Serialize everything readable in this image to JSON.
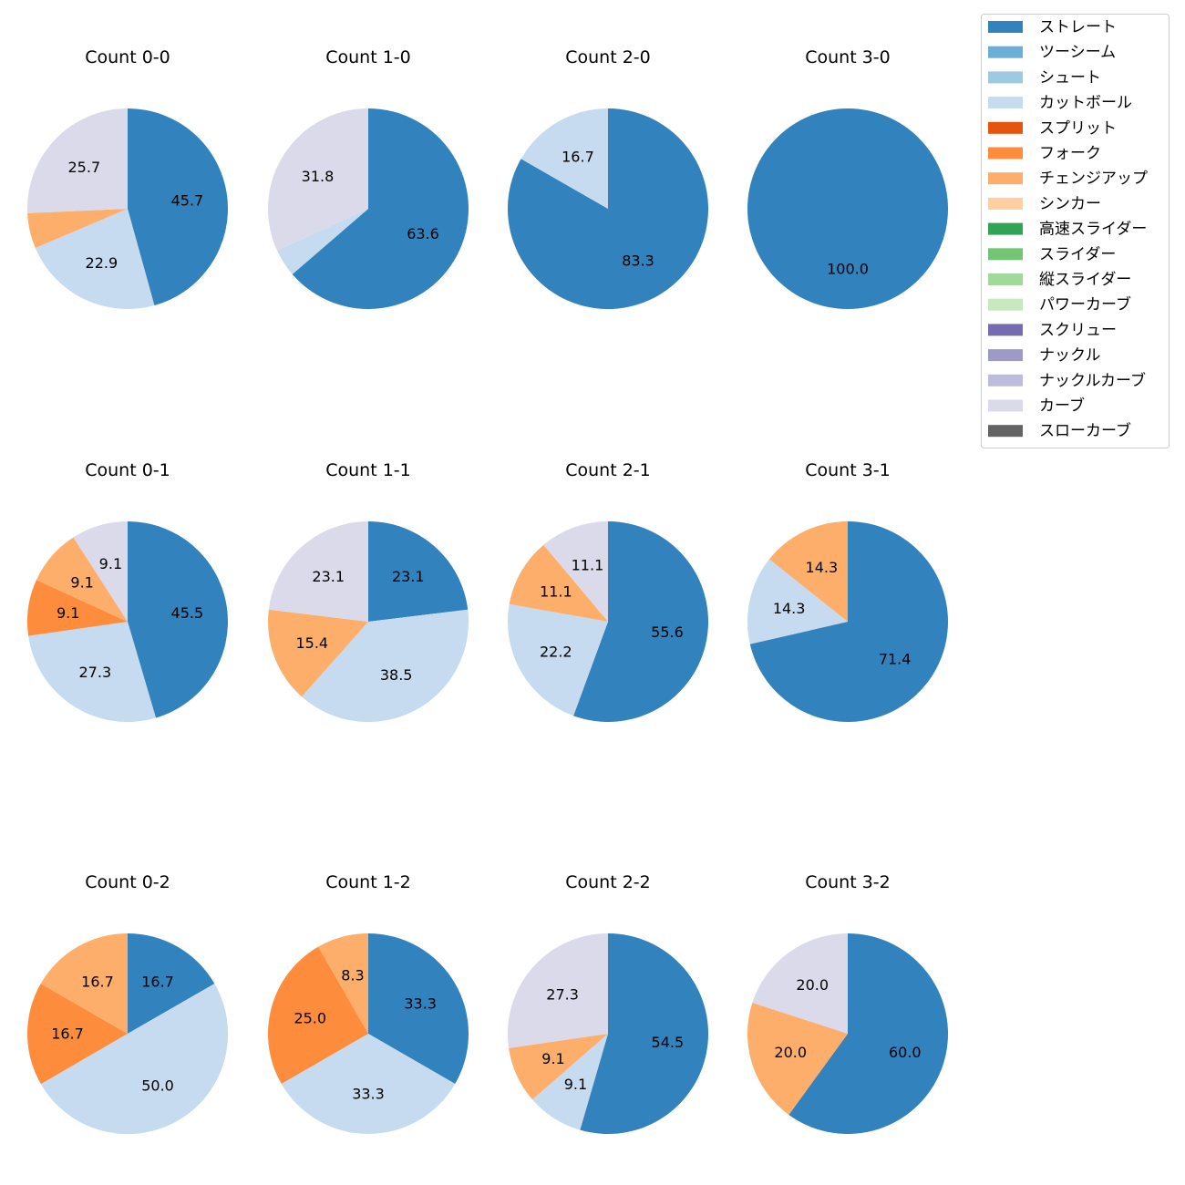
{
  "legend": [
    {
      "name": "ストレート",
      "color": "#3182bd"
    },
    {
      "name": "ツーシーム",
      "color": "#6baed6"
    },
    {
      "name": "シュート",
      "color": "#9ecae1"
    },
    {
      "name": "カットボール",
      "color": "#c6dbef"
    },
    {
      "name": "スプリット",
      "color": "#e6550d"
    },
    {
      "name": "フォーク",
      "color": "#fd8d3c"
    },
    {
      "name": "チェンジアップ",
      "color": "#fdae6b"
    },
    {
      "name": "シンカー",
      "color": "#fdd0a2"
    },
    {
      "name": "高速スライダー",
      "color": "#31a354"
    },
    {
      "name": "スライダー",
      "color": "#74c476"
    },
    {
      "name": "縦スライダー",
      "color": "#a1d99b"
    },
    {
      "name": "パワーカーブ",
      "color": "#c7e9c0"
    },
    {
      "name": "スクリュー",
      "color": "#756bb1"
    },
    {
      "name": "ナックル",
      "color": "#9e9ac8"
    },
    {
      "name": "ナックルカーブ",
      "color": "#bcbddc"
    },
    {
      "name": "カーブ",
      "color": "#dadaeb"
    },
    {
      "name": "スローカーブ",
      "color": "#636363"
    }
  ],
  "chart_data": [
    {
      "type": "pie",
      "title": "Count 0-0",
      "slices": [
        {
          "pitch": "ストレート",
          "value": 45.7
        },
        {
          "pitch": "カットボール",
          "value": 22.9
        },
        {
          "pitch": "チェンジアップ",
          "value": 5.7,
          "label": ""
        },
        {
          "pitch": "カーブ",
          "value": 25.7
        }
      ]
    },
    {
      "type": "pie",
      "title": "Count 1-0",
      "slices": [
        {
          "pitch": "ストレート",
          "value": 63.6
        },
        {
          "pitch": "カットボール",
          "value": 4.5,
          "label": ""
        },
        {
          "pitch": "カーブ",
          "value": 31.8
        }
      ]
    },
    {
      "type": "pie",
      "title": "Count 2-0",
      "slices": [
        {
          "pitch": "ストレート",
          "value": 83.3
        },
        {
          "pitch": "カットボール",
          "value": 16.7
        }
      ]
    },
    {
      "type": "pie",
      "title": "Count 3-0",
      "slices": [
        {
          "pitch": "ストレート",
          "value": 100.0
        }
      ]
    },
    {
      "type": "pie",
      "title": "Count 0-1",
      "slices": [
        {
          "pitch": "ストレート",
          "value": 45.5
        },
        {
          "pitch": "カットボール",
          "value": 27.3
        },
        {
          "pitch": "フォーク",
          "value": 9.1
        },
        {
          "pitch": "チェンジアップ",
          "value": 9.1
        },
        {
          "pitch": "カーブ",
          "value": 9.1
        }
      ]
    },
    {
      "type": "pie",
      "title": "Count 1-1",
      "slices": [
        {
          "pitch": "ストレート",
          "value": 23.1
        },
        {
          "pitch": "カットボール",
          "value": 38.5
        },
        {
          "pitch": "チェンジアップ",
          "value": 15.4
        },
        {
          "pitch": "カーブ",
          "value": 23.1
        }
      ]
    },
    {
      "type": "pie",
      "title": "Count 2-1",
      "slices": [
        {
          "pitch": "ストレート",
          "value": 55.6
        },
        {
          "pitch": "カットボール",
          "value": 22.2
        },
        {
          "pitch": "チェンジアップ",
          "value": 11.1
        },
        {
          "pitch": "カーブ",
          "value": 11.1
        }
      ]
    },
    {
      "type": "pie",
      "title": "Count 3-1",
      "slices": [
        {
          "pitch": "ストレート",
          "value": 71.4
        },
        {
          "pitch": "カットボール",
          "value": 14.3
        },
        {
          "pitch": "チェンジアップ",
          "value": 14.3
        }
      ]
    },
    {
      "type": "pie",
      "title": "Count 0-2",
      "slices": [
        {
          "pitch": "ストレート",
          "value": 16.7
        },
        {
          "pitch": "カットボール",
          "value": 50.0
        },
        {
          "pitch": "フォーク",
          "value": 16.7
        },
        {
          "pitch": "チェンジアップ",
          "value": 16.7
        }
      ]
    },
    {
      "type": "pie",
      "title": "Count 1-2",
      "slices": [
        {
          "pitch": "ストレート",
          "value": 33.3
        },
        {
          "pitch": "カットボール",
          "value": 33.3
        },
        {
          "pitch": "フォーク",
          "value": 25.0
        },
        {
          "pitch": "チェンジアップ",
          "value": 8.3
        }
      ]
    },
    {
      "type": "pie",
      "title": "Count 2-2",
      "slices": [
        {
          "pitch": "ストレート",
          "value": 54.5
        },
        {
          "pitch": "カットボール",
          "value": 9.1
        },
        {
          "pitch": "チェンジアップ",
          "value": 9.1
        },
        {
          "pitch": "カーブ",
          "value": 27.3
        }
      ]
    },
    {
      "type": "pie",
      "title": "Count 3-2",
      "slices": [
        {
          "pitch": "ストレート",
          "value": 60.0
        },
        {
          "pitch": "チェンジアップ",
          "value": 20.0
        },
        {
          "pitch": "カーブ",
          "value": 20.0
        }
      ]
    }
  ]
}
